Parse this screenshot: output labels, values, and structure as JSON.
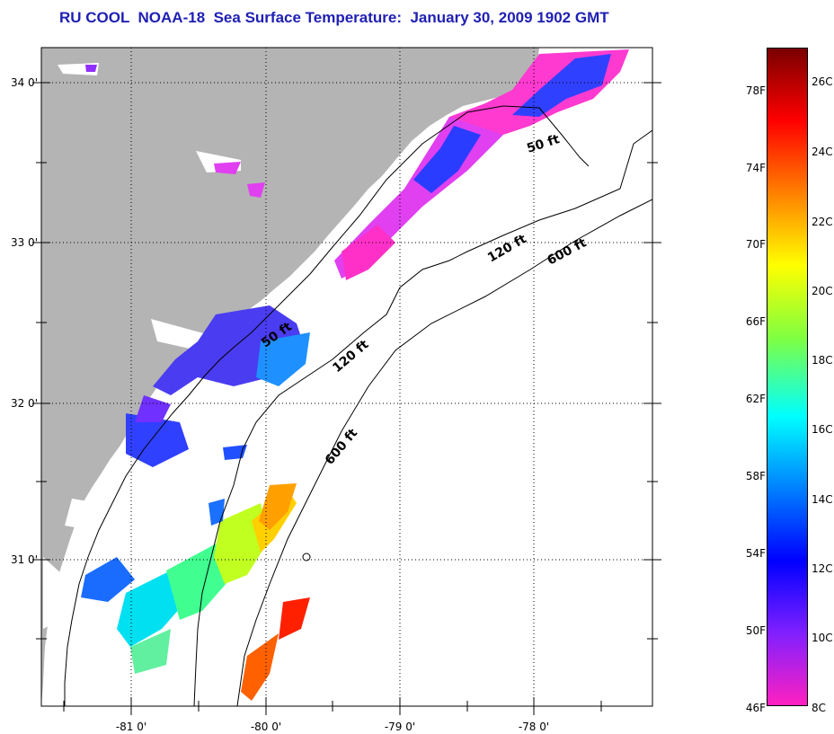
{
  "title": "RU COOL  NOAA-18  Sea Surface Temperature:  January 30, 2009 1902 GMT",
  "map": {
    "lat_labels": [
      "34 0'",
      "33 0'",
      "32 0'",
      "31 0'"
    ],
    "lon_labels": [
      "-81 0'",
      "-80 0'",
      "-79 0'",
      "-78 0'"
    ],
    "contour_labels": [
      "50 ft",
      "120 ft",
      "600 ft",
      "50 ft",
      "120 ft",
      "600 ft"
    ],
    "colors": {
      "land": "#b4b4b4",
      "ocean": "#ffffff",
      "grid": "#000000"
    }
  },
  "colorbar": {
    "fahrenheit": [
      "78F",
      "74F",
      "70F",
      "66F",
      "62F",
      "58F",
      "54F",
      "50F",
      "46F"
    ],
    "celsius": [
      "26C",
      "24C",
      "22C",
      "20C",
      "18C",
      "16C",
      "14C",
      "12C",
      "10C",
      "8C"
    ],
    "stops": [
      "#7a0000",
      "#ff0000",
      "#ff8000",
      "#ffff00",
      "#80ff40",
      "#00ffff",
      "#0080ff",
      "#0000ff",
      "#8020ff",
      "#ff20c0"
    ]
  }
}
